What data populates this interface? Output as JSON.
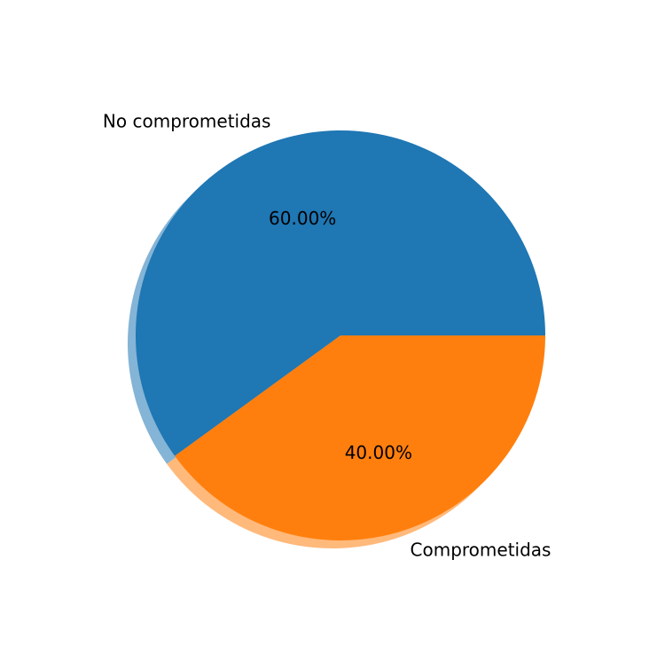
{
  "chart_data": {
    "type": "pie",
    "title": "",
    "shadow": true,
    "start_angle_deg": 0,
    "direction": "counterclockwise",
    "slices": [
      {
        "label": "No comprometidas",
        "value": 60.0,
        "pct_label": "60.00%",
        "color": "#1f77b4"
      },
      {
        "label": "Comprometidas",
        "value": 40.0,
        "pct_label": "40.00%",
        "color": "#ff7f0e"
      }
    ]
  }
}
